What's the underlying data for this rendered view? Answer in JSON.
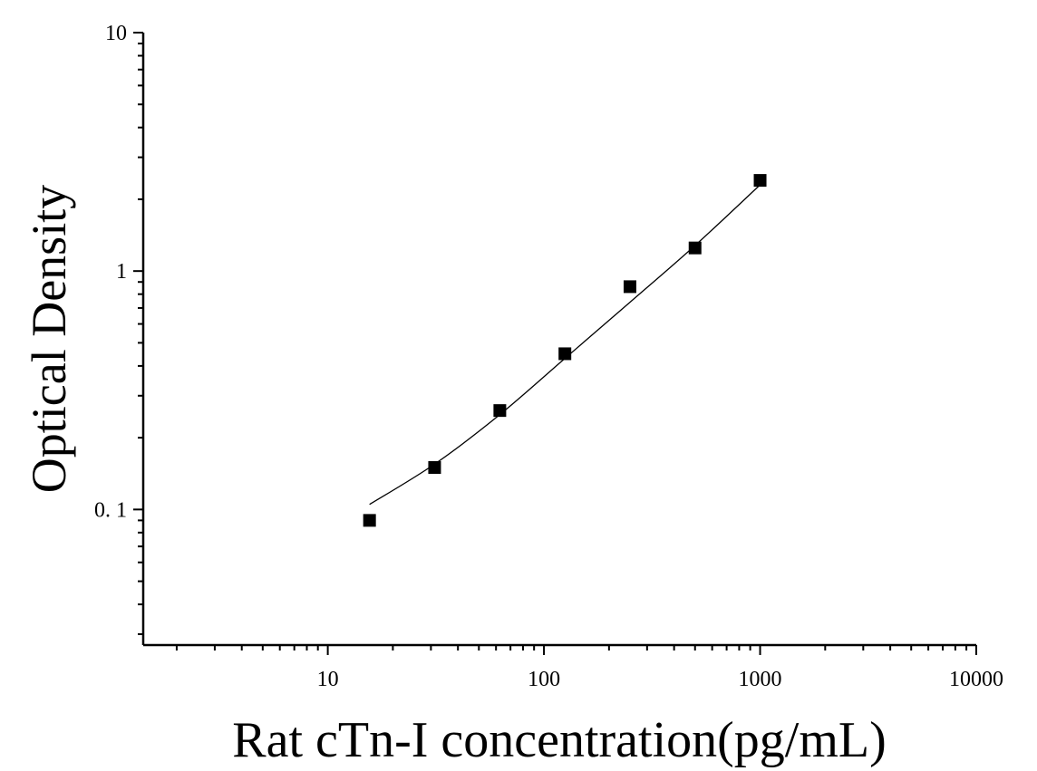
{
  "chart_data": {
    "type": "scatter",
    "title": "",
    "xlabel": "Rat cTn-I concentration(pg/mL)",
    "ylabel": "Optical Density",
    "xscale": "log",
    "yscale": "log",
    "xlim": [
      1.4,
      10000
    ],
    "ylim": [
      0.027,
      10
    ],
    "x_tick_labels": [
      {
        "value": 10,
        "label": "10"
      },
      {
        "value": 100,
        "label": "100"
      },
      {
        "value": 1000,
        "label": "1000"
      },
      {
        "value": 10000,
        "label": "10000"
      }
    ],
    "y_tick_labels": [
      {
        "value": 0.1,
        "label": "0. 1"
      },
      {
        "value": 1,
        "label": "1"
      },
      {
        "value": 10,
        "label": "10"
      }
    ],
    "grid": false,
    "legend": "none",
    "marker_color": "#000000",
    "points": [
      {
        "x": 15.6,
        "y": 0.09
      },
      {
        "x": 31.2,
        "y": 0.15
      },
      {
        "x": 62.5,
        "y": 0.26
      },
      {
        "x": 125,
        "y": 0.45
      },
      {
        "x": 250,
        "y": 0.86
      },
      {
        "x": 500,
        "y": 1.25
      },
      {
        "x": 1000,
        "y": 2.4
      }
    ],
    "fit_curve": [
      {
        "x": 15.6,
        "y": 0.105
      },
      {
        "x": 31.2,
        "y": 0.155
      },
      {
        "x": 62.5,
        "y": 0.25
      },
      {
        "x": 125,
        "y": 0.43
      },
      {
        "x": 250,
        "y": 0.74
      },
      {
        "x": 500,
        "y": 1.28
      },
      {
        "x": 1000,
        "y": 2.3
      }
    ]
  }
}
